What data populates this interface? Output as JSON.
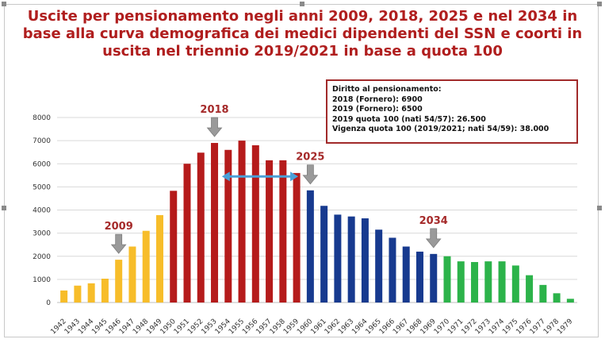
{
  "title_lines": [
    "Uscite per pensionamento negli anni 2009, 2018, 2025 e nel 2034 in",
    "base alla curva demografica dei medici dipendenti del SSN e coorti in",
    "uscita nel triennio 2019/2021 in base a quota 100"
  ],
  "info_box": {
    "heading": "Diritto al pensionamento:",
    "lines": [
      "2018 (Fornero): 6900",
      "2019 (Fornero): 6500",
      "2019 quota 100 (nati 54/57):  26.500",
      "Vigenza quota 100 (2019/2021; nati 54/59): 38.000"
    ]
  },
  "colors": {
    "yellow": "#f7bd2a",
    "red": "#b51b1b",
    "blue": "#173a8f",
    "green": "#2cb34a",
    "arrow_gray": "#9a9a9a",
    "double_arrow": "#4aa0d8",
    "title": "#b01e1e"
  },
  "chart_data": {
    "type": "bar",
    "title": "Uscite per pensionamento negli anni 2009, 2018, 2025 e nel 2034 in base alla curva demografica dei medici dipendenti del SSN e coorti in uscita nel triennio 2019/2021 in base a quota 100",
    "xlabel": "",
    "ylabel": "",
    "ylim": [
      0,
      8000
    ],
    "yticks": [
      0,
      1000,
      2000,
      3000,
      4000,
      5000,
      6000,
      7000,
      8000
    ],
    "grid": true,
    "categories": [
      "1942",
      "1943",
      "1944",
      "1945",
      "1946",
      "1947",
      "1948",
      "1949",
      "1950",
      "1951",
      "1952",
      "1953",
      "1954",
      "1955",
      "1956",
      "1957",
      "1958",
      "1959",
      "1960",
      "1961",
      "1962",
      "1963",
      "1964",
      "1965",
      "1966",
      "1967",
      "1968",
      "1969",
      "1970",
      "1971",
      "1972",
      "1973",
      "1974",
      "1975",
      "1976",
      "1977",
      "1978",
      "1979"
    ],
    "values": [
      520,
      730,
      830,
      1030,
      1850,
      2420,
      3100,
      3780,
      4830,
      6000,
      6480,
      6900,
      6600,
      7000,
      6800,
      6150,
      6150,
      5600,
      4850,
      4180,
      3800,
      3720,
      3640,
      3150,
      2800,
      2420,
      2200,
      2100,
      2000,
      1780,
      1750,
      1780,
      1780,
      1600,
      1180,
      760,
      400,
      160
    ],
    "color_groups": [
      "yellow",
      "yellow",
      "yellow",
      "yellow",
      "yellow",
      "yellow",
      "yellow",
      "yellow",
      "red",
      "red",
      "red",
      "red",
      "red",
      "red",
      "red",
      "red",
      "red",
      "red",
      "blue",
      "blue",
      "blue",
      "blue",
      "blue",
      "blue",
      "blue",
      "blue",
      "blue",
      "blue",
      "green",
      "green",
      "green",
      "green",
      "green",
      "green",
      "green",
      "green",
      "green",
      "green"
    ],
    "annotations": [
      {
        "label": "2009",
        "category": "1946"
      },
      {
        "label": "2018",
        "category": "1953"
      },
      {
        "label": "2025",
        "category": "1960"
      },
      {
        "label": "2034",
        "category": "1969"
      }
    ],
    "double_arrow": {
      "from": "1954",
      "to": "1959"
    }
  }
}
